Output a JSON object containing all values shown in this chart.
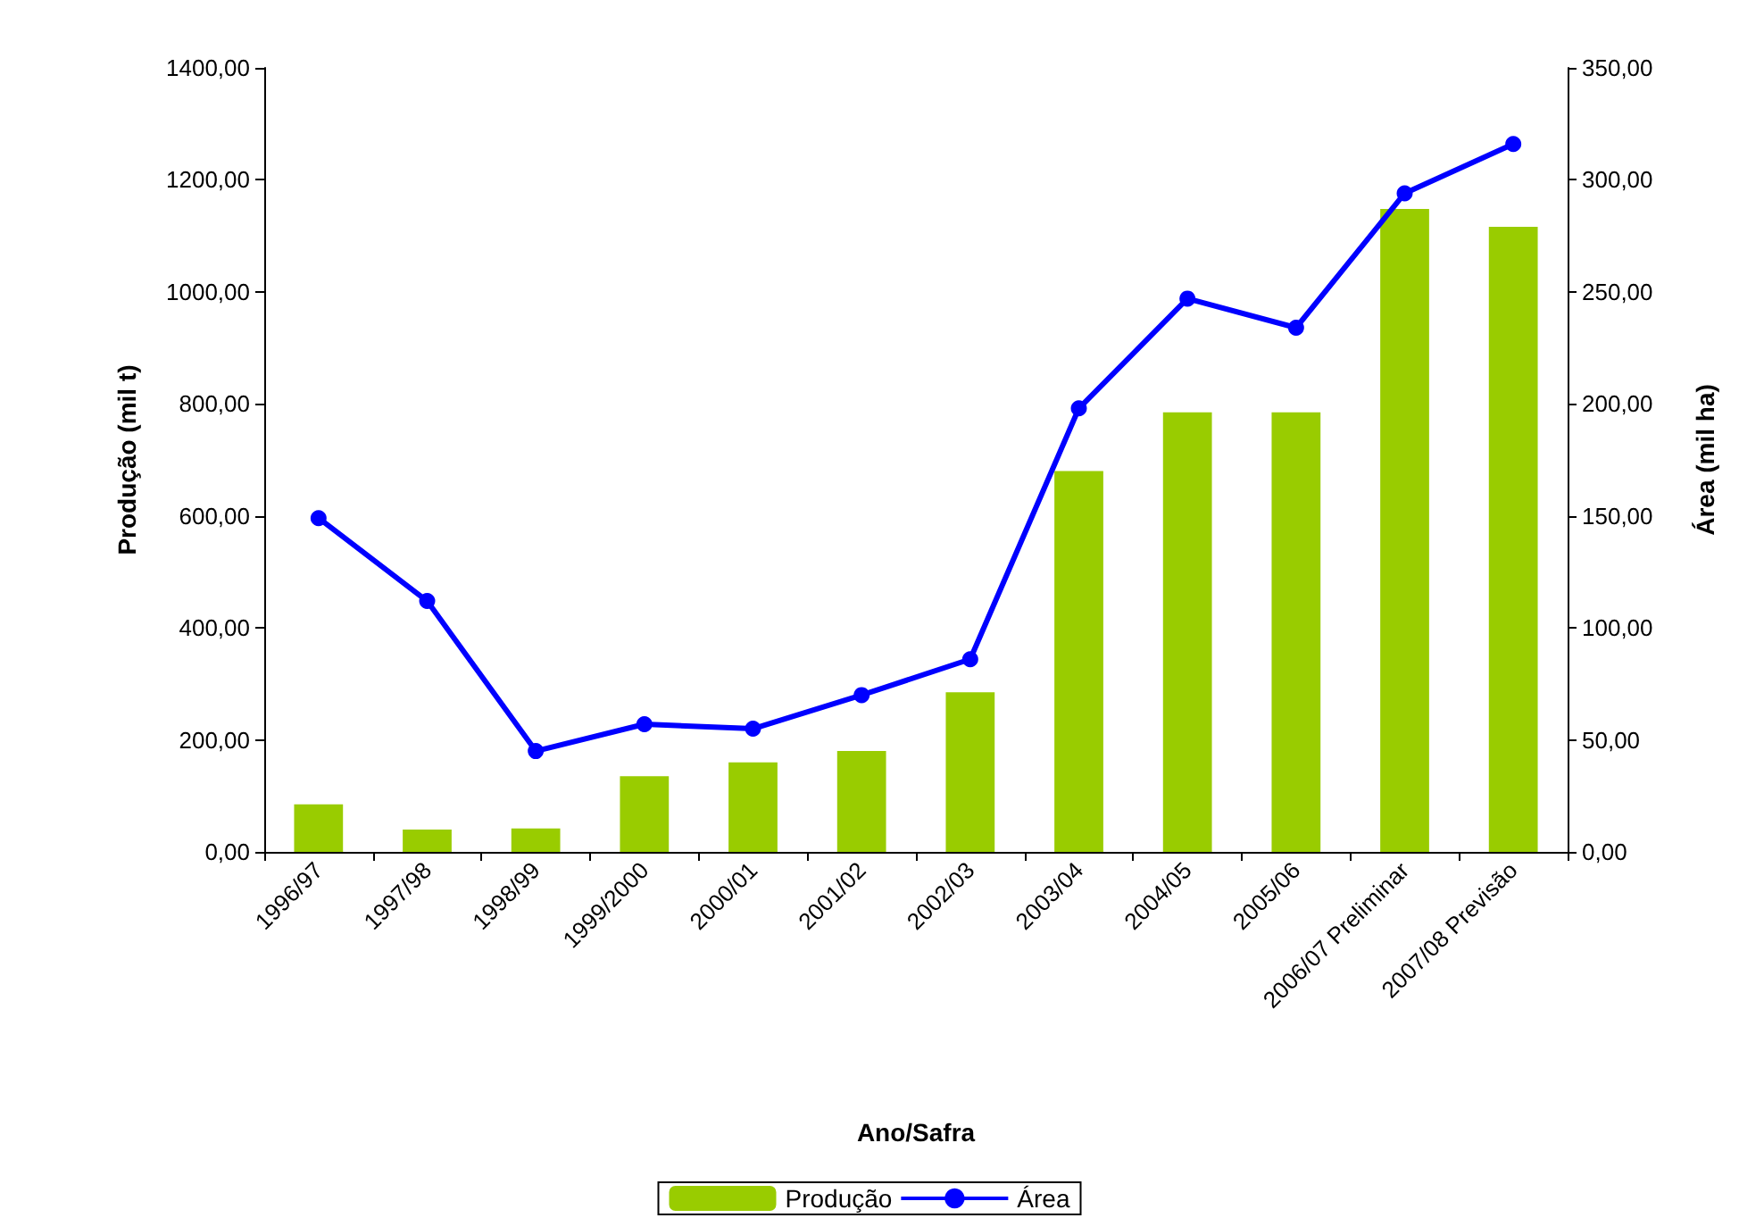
{
  "chart_data": {
    "type": "bar",
    "xlabel": "Ano/Safra",
    "ylabel": "Produção (mil t)",
    "y2label": "Área (mil ha)",
    "categories": [
      "1996/97",
      "1997/98",
      "1998/99",
      "1999/2000",
      "2000/01",
      "2001/02",
      "2002/03",
      "2003/04",
      "2004/05",
      "2005/06",
      "2006/07 Preliminar",
      "2007/08 Previsão"
    ],
    "series": [
      {
        "name": "Produção",
        "color": "#99cc00",
        "values": [
          85,
          40,
          42,
          135,
          160,
          180,
          285,
          680,
          785,
          785,
          1148,
          1116
        ]
      },
      {
        "name": "Área",
        "type": "line",
        "axis": "y2",
        "color": "#0000ff",
        "marker": "circle",
        "values": [
          149,
          112,
          45,
          57,
          55,
          70,
          86,
          198,
          247,
          234,
          294,
          316
        ]
      }
    ],
    "ylim": [
      0,
      1400
    ],
    "yticks": [
      {
        "value": 0,
        "label": "0,00"
      },
      {
        "value": 200,
        "label": "200,00"
      },
      {
        "value": 400,
        "label": "400,00"
      },
      {
        "value": 600,
        "label": "600,00"
      },
      {
        "value": 800,
        "label": "800,00"
      },
      {
        "value": 1000,
        "label": "1000,00"
      },
      {
        "value": 1200,
        "label": "1200,00"
      },
      {
        "value": 1400,
        "label": "1400,00"
      }
    ],
    "y2lim": [
      0,
      350
    ],
    "y2ticks": [
      {
        "value": 0,
        "label": "0,00"
      },
      {
        "value": 50,
        "label": "50,00"
      },
      {
        "value": 100,
        "label": "100,00"
      },
      {
        "value": 150,
        "label": "150,00"
      },
      {
        "value": 200,
        "label": "200,00"
      },
      {
        "value": 250,
        "label": "250,00"
      },
      {
        "value": 300,
        "label": "300,00"
      },
      {
        "value": 350,
        "label": "350,00"
      }
    ],
    "grid": false,
    "legend": "bottom"
  }
}
